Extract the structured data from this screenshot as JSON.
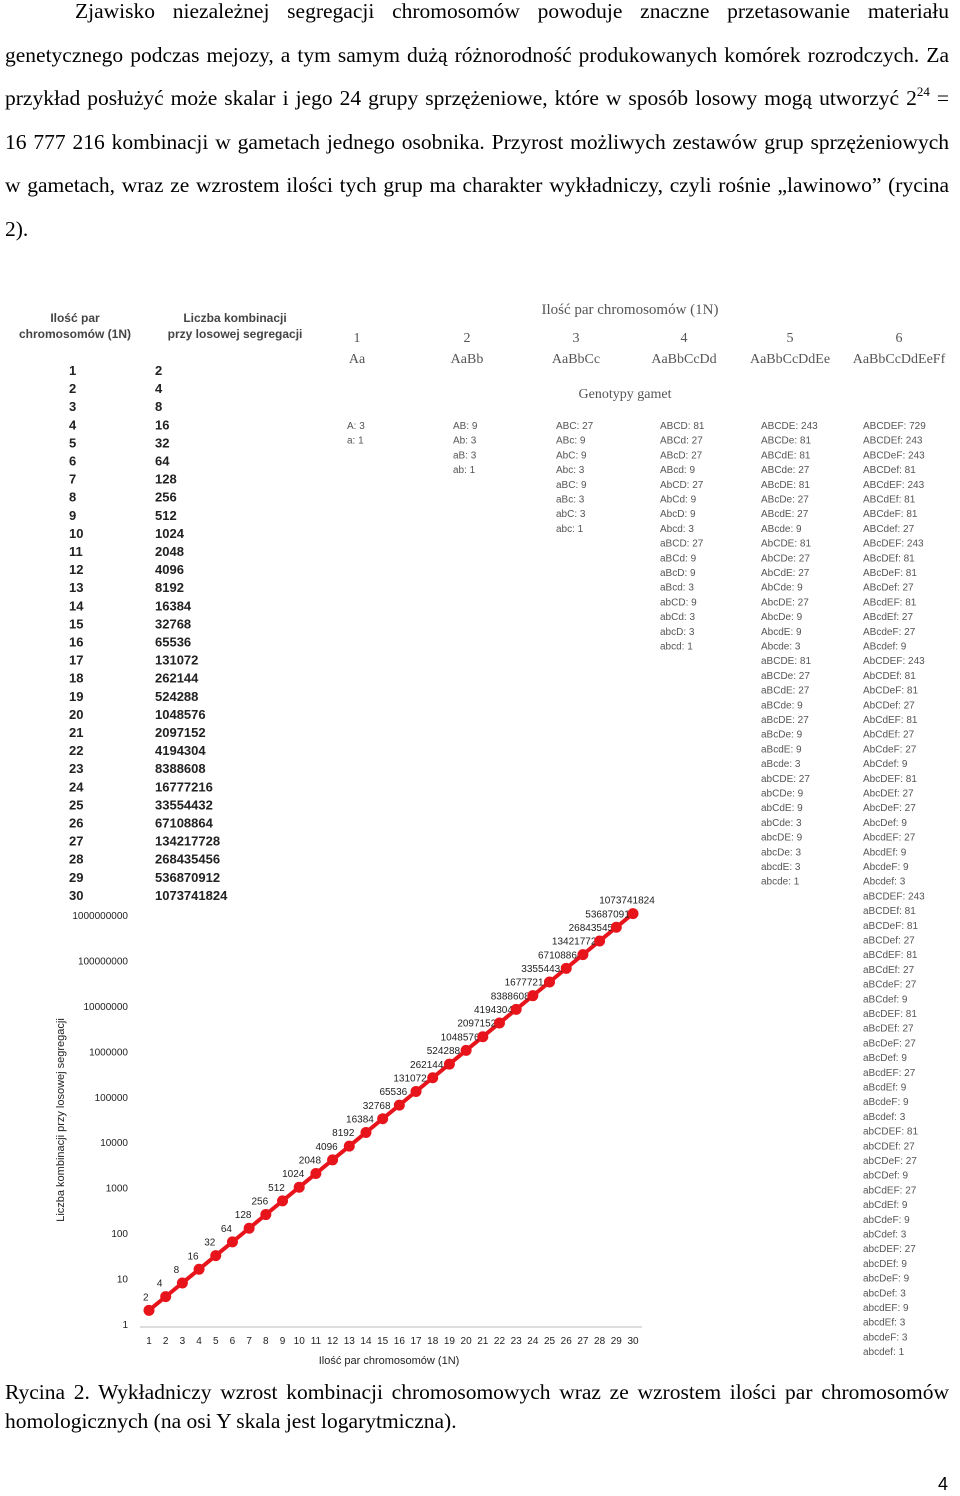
{
  "paragraph": {
    "line1": "Zjawisko niezależnej segregacji chromosomów powoduje znaczne przetasowanie materiału genetycznego podczas mejozy, a tym samym dużą różnorodność produkowanych komórek rozrodczych. Za przykład posłużyć może skalar i jego 24 grupy sprzężeniowe, które w sposób losowy mogą utworzyć 2",
    "exp": "24",
    "line2": " = 16 777 216 kombinacji w gametach jednego osobnika.",
    "line3": "Przyrost możliwych zestawów grup sprzężeniowych w gametach, wraz ze wzrostem ilości tych grup ma charakter wykładniczy, czyli rośnie „lawinowo” (rycina 2)."
  },
  "table": {
    "col1_header": [
      "Ilość par",
      "chromosomów (1N)"
    ],
    "col2_header": [
      "Liczba kombinacji",
      "przy losowej segregacji"
    ],
    "rows": [
      [
        "1",
        "2"
      ],
      [
        "2",
        "4"
      ],
      [
        "3",
        "8"
      ],
      [
        "4",
        "16"
      ],
      [
        "5",
        "32"
      ],
      [
        "6",
        "64"
      ],
      [
        "7",
        "128"
      ],
      [
        "8",
        "256"
      ],
      [
        "9",
        "512"
      ],
      [
        "10",
        "1024"
      ],
      [
        "11",
        "2048"
      ],
      [
        "12",
        "4096"
      ],
      [
        "13",
        "8192"
      ],
      [
        "14",
        "16384"
      ],
      [
        "15",
        "32768"
      ],
      [
        "16",
        "65536"
      ],
      [
        "17",
        "131072"
      ],
      [
        "18",
        "262144"
      ],
      [
        "19",
        "524288"
      ],
      [
        "20",
        "1048576"
      ],
      [
        "21",
        "2097152"
      ],
      [
        "22",
        "4194304"
      ],
      [
        "23",
        "8388608"
      ],
      [
        "24",
        "16777216"
      ],
      [
        "25",
        "33554432"
      ],
      [
        "26",
        "67108864"
      ],
      [
        "27",
        "134217728"
      ],
      [
        "28",
        "268435456"
      ],
      [
        "29",
        "536870912"
      ],
      [
        "30",
        "1073741824"
      ]
    ]
  },
  "genotypes": {
    "header": "Ilość par chromosomów (1N)",
    "subheader": "Genotypy gamet",
    "columns": [
      {
        "n": "1",
        "label": "Aa",
        "items": [
          "A: 3",
          "a: 1"
        ]
      },
      {
        "n": "2",
        "label": "AaBb",
        "items": [
          "AB: 9",
          "Ab: 3",
          "aB: 3",
          "ab: 1"
        ]
      },
      {
        "n": "3",
        "label": "AaBbCc",
        "items": [
          "ABC: 27",
          "ABc: 9",
          "AbC: 9",
          "Abc: 3",
          "aBC: 9",
          "aBc: 3",
          "abC: 3",
          "abc: 1"
        ]
      },
      {
        "n": "4",
        "label": "AaBbCcDd",
        "items": [
          "ABCD: 81",
          "ABCd: 27",
          "ABcD: 27",
          "ABcd: 9",
          "AbCD: 27",
          "AbCd: 9",
          "AbcD: 9",
          "Abcd: 3",
          "aBCD: 27",
          "aBCd: 9",
          "aBcD: 9",
          "aBcd: 3",
          "abCD: 9",
          "abCd: 3",
          "abcD: 3",
          "abcd: 1"
        ]
      },
      {
        "n": "5",
        "label": "AaBbCcDdEe",
        "items": [
          "ABCDE: 243",
          "ABCDe: 81",
          "ABCdE: 81",
          "ABCde: 27",
          "ABcDE: 81",
          "ABcDe: 27",
          "ABcdE: 27",
          "ABcde: 9",
          "AbCDE: 81",
          "AbCDe: 27",
          "AbCdE: 27",
          "AbCde: 9",
          "AbcDE: 27",
          "AbcDe: 9",
          "AbcdE: 9",
          "Abcde: 3",
          "aBCDE: 81",
          "aBCDe: 27",
          "aBCdE: 27",
          "aBCde: 9",
          "aBcDE: 27",
          "aBcDe: 9",
          "aBcdE: 9",
          "aBcde: 3",
          "abCDE: 27",
          "abCDe: 9",
          "abCdE: 9",
          "abCde: 3",
          "abcDE: 9",
          "abcDe: 3",
          "abcdE: 3",
          "abcde: 1"
        ]
      },
      {
        "n": "6",
        "label": "AaBbCcDdEeFf",
        "items": [
          "ABCDEF: 729",
          "ABCDEf: 243",
          "ABCDeF: 243",
          "ABCDef: 81",
          "ABCdEF: 243",
          "ABCdEf: 81",
          "ABCdeF: 81",
          "ABCdef: 27",
          "ABcDEF: 243",
          "ABcDEf: 81",
          "ABcDeF: 81",
          "ABcDef: 27",
          "ABcdEF: 81",
          "ABcdEf: 27",
          "ABcdeF: 27",
          "ABcdef: 9",
          "AbCDEF: 243",
          "AbCDEf: 81",
          "AbCDeF: 81",
          "AbCDef: 27",
          "AbCdEF: 81",
          "AbCdEf: 27",
          "AbCdeF: 27",
          "AbCdef: 9",
          "AbcDEF: 81",
          "AbcDEf: 27",
          "AbcDeF: 27",
          "AbcDef: 9",
          "AbcdEF: 27",
          "AbcdEf: 9",
          "AbcdeF: 9",
          "Abcdef: 3",
          "aBCDEF: 243",
          "aBCDEf: 81",
          "aBCDeF: 81",
          "aBCDef: 27",
          "aBCdEF: 81",
          "aBCdEf: 27",
          "aBCdeF: 27",
          "aBCdef: 9",
          "aBcDEF: 81",
          "aBcDEf: 27",
          "aBcDeF: 27",
          "aBcDef: 9",
          "aBcdEF: 27",
          "aBcdEf: 9",
          "aBcdeF: 9",
          "aBcdef: 3",
          "abCDEF: 81",
          "abCDEf: 27",
          "abCDeF: 27",
          "abCDef: 9",
          "abCdEF: 27",
          "abCdEf: 9",
          "abCdeF: 9",
          "abCdef: 3",
          "abcDEF: 27",
          "abcDEf: 9",
          "abcDeF: 9",
          "abcDef: 3",
          "abcdEF: 9",
          "abcdEf: 3",
          "abcdeF: 3",
          "abcdef: 1"
        ]
      }
    ]
  },
  "chart_data": {
    "type": "line",
    "xlabel": "Ilość par chromosomów (1N)",
    "ylabel": "Liczba kombinacji przy losowej segregacji",
    "y_scale": "log",
    "ylim": [
      1,
      1000000000
    ],
    "y_ticks": [
      "1",
      "10",
      "100",
      "1000",
      "10000",
      "100000",
      "1000000",
      "10000000",
      "100000000",
      "1000000000"
    ],
    "x": [
      1,
      2,
      3,
      4,
      5,
      6,
      7,
      8,
      9,
      10,
      11,
      12,
      13,
      14,
      15,
      16,
      17,
      18,
      19,
      20,
      21,
      22,
      23,
      24,
      25,
      26,
      27,
      28,
      29,
      30
    ],
    "values": [
      2,
      4,
      8,
      16,
      32,
      64,
      128,
      256,
      512,
      1024,
      2048,
      4096,
      8192,
      16384,
      32768,
      65536,
      131072,
      262144,
      524288,
      1048576,
      2097152,
      4194304,
      8388608,
      16777216,
      33554432,
      67108864,
      134217728,
      268435456,
      536870912,
      1073741824
    ],
    "point_labels": [
      "2",
      "4",
      "8",
      "16",
      "32",
      "64",
      "128",
      "256",
      "512",
      "1024",
      "2048",
      "4096",
      "8192",
      "16384",
      "32768",
      "65536",
      "131072",
      "262144",
      "524288",
      "1048576",
      "2097152",
      "4194304",
      "8388608",
      "16777216",
      "33554432",
      "67108864",
      "134217728",
      "268435456",
      "536870912",
      "1073741824"
    ],
    "series_color": "#e8141c"
  },
  "caption": "Rycina 2. Wykładniczy wzrost kombinacji chromosomowych wraz ze wzrostem ilości par chromosomów homologicznych (na osi Y skala jest logarytmiczna).",
  "page_number": "4"
}
